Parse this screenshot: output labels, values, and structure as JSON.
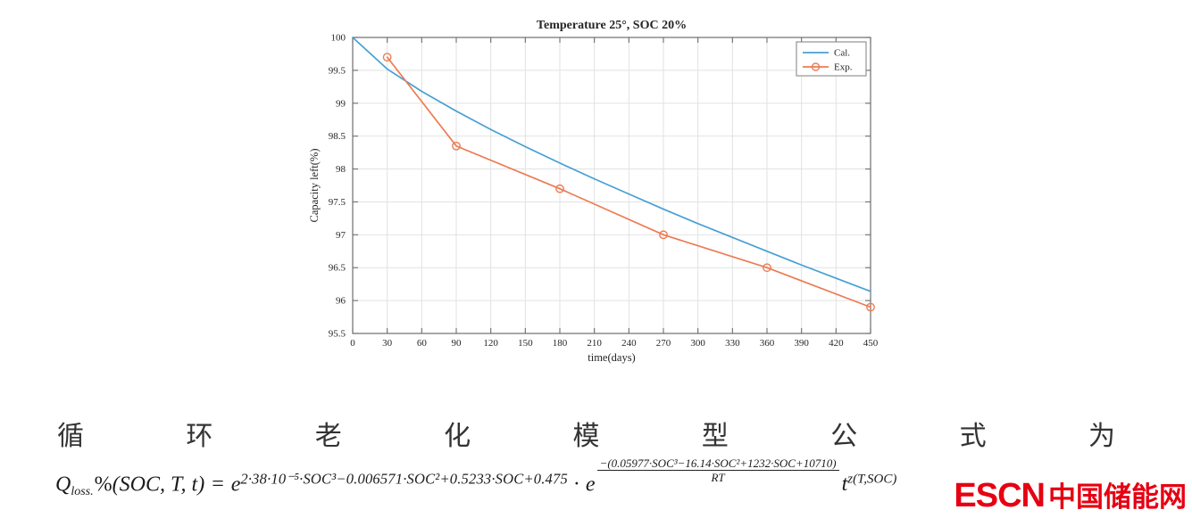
{
  "caption": {
    "text": "循环老化模型公式为",
    "chars": [
      "循",
      "环",
      "老",
      "化",
      "模",
      "型",
      "公",
      "式",
      "为"
    ]
  },
  "formula": {
    "lhs_q": "Q",
    "lhs_sub": "loss.",
    "lhs_pct": "%",
    "lhs_args": "(SOC, T, t)",
    "equals": "=",
    "e1_base": "e",
    "e1_exp": "2·38·10⁻⁵·SOC³−0.006571·SOC²+0.5233·SOC+0.475",
    "cdot": "·",
    "e2_base": "e",
    "e2_num": "−(0.05977·SOC³−16.14·SOC²+1232·SOC+10710)",
    "e2_den": "RT",
    "t_base": "t",
    "t_exp": "z(T,SOC)"
  },
  "logo": {
    "escn": "ESCN",
    "cn": "中国储能网",
    "color": "#e60012"
  },
  "chart_data": {
    "type": "line",
    "title": "Temperature 25°, SOC 20%",
    "xlabel": "time(days)",
    "ylabel": "Capacity left(%)",
    "xlim": [
      0,
      450
    ],
    "ylim": [
      95.5,
      100
    ],
    "xticks": [
      0,
      30,
      60,
      90,
      120,
      150,
      180,
      210,
      240,
      270,
      300,
      330,
      360,
      390,
      420,
      450
    ],
    "yticks": [
      95.5,
      96,
      96.5,
      97,
      97.5,
      98,
      98.5,
      99,
      99.5,
      100
    ],
    "grid": true,
    "legend_position": "top-right",
    "grid_color": "#e2e2e2",
    "axis_color": "#6e6e6e",
    "text_color": "#262626",
    "series": [
      {
        "name": "Cal.",
        "color": "#47A0D4",
        "marker": "none",
        "x": [
          0,
          30,
          60,
          90,
          120,
          150,
          180,
          210,
          240,
          270,
          300,
          330,
          360,
          390,
          420,
          450
        ],
        "y": [
          100,
          99.52,
          99.18,
          98.88,
          98.6,
          98.34,
          98.09,
          97.85,
          97.62,
          97.39,
          97.17,
          96.96,
          96.75,
          96.54,
          96.34,
          96.14
        ]
      },
      {
        "name": "Exp.",
        "color": "#ED7B52",
        "marker": "circle",
        "x": [
          30,
          90,
          180,
          270,
          360,
          450
        ],
        "y": [
          99.7,
          98.35,
          97.7,
          97.0,
          96.5,
          95.9
        ]
      }
    ]
  }
}
